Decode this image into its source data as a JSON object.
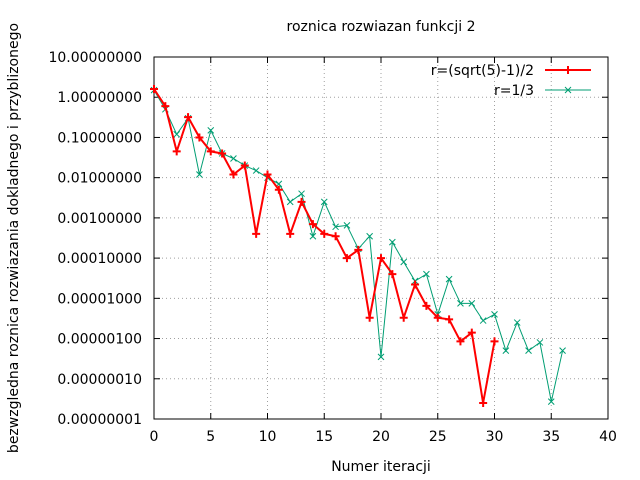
{
  "chart_data": {
    "type": "line",
    "title": "roznica rozwiazan funkcji 2",
    "xlabel": "Numer iteracji",
    "ylabel": "bezwzgledna roznica rozwiazania dokladnego i przyblizonego",
    "xlim": [
      0,
      40
    ],
    "ylim": [
      1e-08,
      10
    ],
    "yscale": "log",
    "grid": true,
    "legend_position": "top-right",
    "x_ticks": [
      0,
      5,
      10,
      15,
      20,
      25,
      30,
      35,
      40
    ],
    "x_tick_labels": [
      "0",
      "5",
      "10",
      "15",
      "20",
      "25",
      "30",
      "35",
      "40"
    ],
    "y_ticks": [
      1e-08,
      1e-07,
      1e-06,
      1e-05,
      0.0001,
      0.001,
      0.01,
      0.1,
      1,
      10
    ],
    "y_tick_labels": [
      "0.00000001",
      "0.00000010",
      "0.00000100",
      "0.00001000",
      "0.00010000",
      "0.00100000",
      "0.01000000",
      "0.10000000",
      "1.00000000",
      "10.00000000"
    ],
    "series": [
      {
        "name": "r=(sqrt(5)-1)/2",
        "color": "#ff0000",
        "marker": "plus",
        "x": [
          0,
          1,
          2,
          3,
          4,
          5,
          6,
          7,
          8,
          9,
          10,
          11,
          12,
          13,
          14,
          15,
          16,
          17,
          18,
          19,
          20,
          21,
          22,
          23,
          24,
          25,
          26,
          27,
          28,
          29,
          30
        ],
        "y": [
          1.6,
          0.6,
          0.045,
          0.32,
          0.1,
          0.045,
          0.04,
          0.012,
          0.02,
          0.0004,
          0.012,
          0.005,
          0.0004,
          0.0025,
          0.0007,
          0.0004,
          0.00035,
          0.0001,
          0.00016,
          3.3e-06,
          0.0001,
          4e-05,
          3.3e-06,
          2.2e-05,
          6.5e-06,
          3.3e-06,
          3e-06,
          8.5e-07,
          1.4e-06,
          2.5e-08,
          8.5e-07
        ]
      },
      {
        "name": "r=1/3",
        "color": "#009e73",
        "marker": "cross",
        "x": [
          0,
          1,
          2,
          3,
          4,
          5,
          6,
          7,
          8,
          9,
          10,
          11,
          12,
          13,
          14,
          15,
          16,
          17,
          18,
          19,
          20,
          21,
          22,
          23,
          24,
          25,
          26,
          27,
          28,
          29,
          30,
          31,
          32,
          33,
          34,
          35,
          36
        ],
        "y": [
          1.5,
          0.5,
          0.12,
          0.3,
          0.012,
          0.15,
          0.04,
          0.03,
          0.02,
          0.015,
          0.01,
          0.007,
          0.0025,
          0.004,
          0.00035,
          0.0025,
          0.0006,
          0.00065,
          0.00017,
          0.00035,
          3.5e-07,
          0.00025,
          8e-05,
          2.7e-05,
          4e-05,
          4e-06,
          3e-05,
          7.5e-06,
          7.5e-06,
          2.8e-06,
          4e-06,
          5e-07,
          2.5e-06,
          5e-07,
          8e-07,
          2.7e-08,
          5e-07
        ]
      }
    ]
  }
}
